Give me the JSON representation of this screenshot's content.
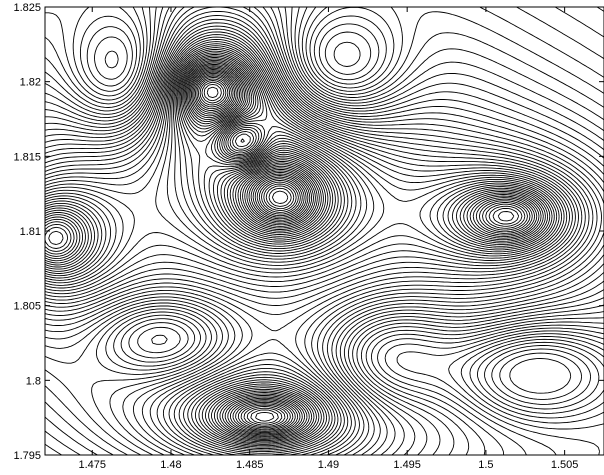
{
  "chart_data": {
    "type": "contour",
    "title": "",
    "xlabel": "",
    "ylabel": "",
    "xlim": [
      1.472,
      1.5075
    ],
    "ylim": [
      1.795,
      1.825
    ],
    "x_ticks": [
      1.475,
      1.48,
      1.485,
      1.49,
      1.495,
      1.5,
      1.505
    ],
    "x_tick_labels": [
      "1.475",
      "1.48",
      "1.485",
      "1.49",
      "1.495",
      "1.5",
      "1.505"
    ],
    "y_ticks": [
      1.795,
      1.8,
      1.805,
      1.81,
      1.815,
      1.82,
      1.825
    ],
    "y_tick_labels": [
      "1.795",
      "1.8",
      "1.805",
      "1.81",
      "1.815",
      "1.82",
      "1.825"
    ],
    "grid": false,
    "line_color": "#000000",
    "features": [
      {
        "kind": "peak",
        "x": 1.4825,
        "y": 1.8195,
        "sx": 0.0022,
        "sy": 0.002,
        "amp": 1.0
      },
      {
        "kind": "peak",
        "x": 1.487,
        "y": 1.8122,
        "sx": 0.0025,
        "sy": 0.0022,
        "amp": 1.0
      },
      {
        "kind": "peak",
        "x": 1.5015,
        "y": 1.811,
        "sx": 0.003,
        "sy": 0.002,
        "amp": 1.0
      },
      {
        "kind": "peak",
        "x": 1.4725,
        "y": 1.8095,
        "sx": 0.0025,
        "sy": 0.0025,
        "amp": 0.9
      },
      {
        "kind": "peak",
        "x": 1.486,
        "y": 1.7975,
        "sx": 0.0032,
        "sy": 0.0016,
        "amp": 1.0
      },
      {
        "kind": "saddle",
        "x": 1.4845,
        "y": 1.816,
        "sx": 0.0012,
        "sy": 0.0012,
        "amp": -0.35
      },
      {
        "kind": "valley",
        "x": 1.477,
        "y": 1.8205,
        "sx": 0.0025,
        "sy": 0.003,
        "amp": -0.45
      },
      {
        "kind": "valley",
        "x": 1.4905,
        "y": 1.821,
        "sx": 0.003,
        "sy": 0.0028,
        "amp": -0.45
      },
      {
        "kind": "valley",
        "x": 1.503,
        "y": 1.8005,
        "sx": 0.0035,
        "sy": 0.0022,
        "amp": -0.5
      },
      {
        "kind": "valley",
        "x": 1.4795,
        "y": 1.8028,
        "sx": 0.003,
        "sy": 0.002,
        "amp": -0.3
      },
      {
        "kind": "valley",
        "x": 1.494,
        "y": 1.8015,
        "sx": 0.003,
        "sy": 0.0025,
        "amp": -0.35
      }
    ]
  }
}
